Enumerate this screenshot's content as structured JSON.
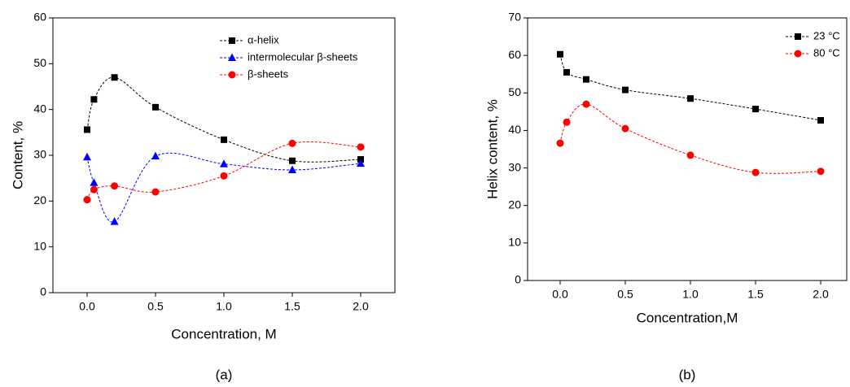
{
  "chart_data": [
    {
      "type": "scatter",
      "caption": "(a)",
      "x_label": "Concentration, M",
      "y_label": "Content, %",
      "x": [
        0,
        0.05,
        0.2,
        0.5,
        1.0,
        1.5,
        2.0
      ],
      "xlim": [
        -0.25,
        2.25
      ],
      "ylim": [
        0,
        60
      ],
      "xticks": [
        {
          "value": 0,
          "label": "0.0"
        },
        {
          "value": 0.5,
          "label": "0.5"
        },
        {
          "value": 1,
          "label": "1.0"
        },
        {
          "value": 1.5,
          "label": "1.5"
        },
        {
          "value": 2,
          "label": "2.0"
        }
      ],
      "yticks": [
        0,
        10,
        20,
        30,
        40,
        50,
        60
      ],
      "series": [
        {
          "name": "α-helix",
          "color": "#000000",
          "marker": "square",
          "values": [
            35.6,
            42.2,
            47,
            40.5,
            33.4,
            28.8,
            29.1
          ]
        },
        {
          "name": "intermolecular β-sheets",
          "color": "#0000ff",
          "marker": "triangle",
          "values": [
            29.6,
            24,
            15.5,
            29.8,
            28.1,
            26.8,
            28.2
          ]
        },
        {
          "name": "β-sheets",
          "color": "#ff0000",
          "marker": "circle",
          "values": [
            20.3,
            22.5,
            23.3,
            22,
            25.5,
            32.6,
            31.8
          ]
        }
      ]
    },
    {
      "type": "scatter",
      "caption": "(b)",
      "x_label": "Concentration,M",
      "y_label": "Helix content, %",
      "x": [
        0,
        0.05,
        0.2,
        0.5,
        1.0,
        1.5,
        2.0
      ],
      "xlim": [
        -0.25,
        2.2
      ],
      "ylim": [
        0,
        70
      ],
      "xticks": [
        {
          "value": 0,
          "label": "0.0"
        },
        {
          "value": 0.5,
          "label": "0.5"
        },
        {
          "value": 1,
          "label": "1.0"
        },
        {
          "value": 1.5,
          "label": "1.5"
        },
        {
          "value": 2,
          "label": "2.0"
        }
      ],
      "yticks": [
        0,
        10,
        20,
        30,
        40,
        50,
        60,
        70
      ],
      "series": [
        {
          "name": "23 °C",
          "color": "#000000",
          "marker": "square",
          "values": [
            60.3,
            55.5,
            53.6,
            50.8,
            48.5,
            45.7,
            42.7
          ]
        },
        {
          "name": "80 °C",
          "color": "#ff0000",
          "marker": "circle",
          "values": [
            36.6,
            42.2,
            47,
            40.5,
            33.4,
            28.8,
            29.1
          ]
        }
      ]
    }
  ]
}
